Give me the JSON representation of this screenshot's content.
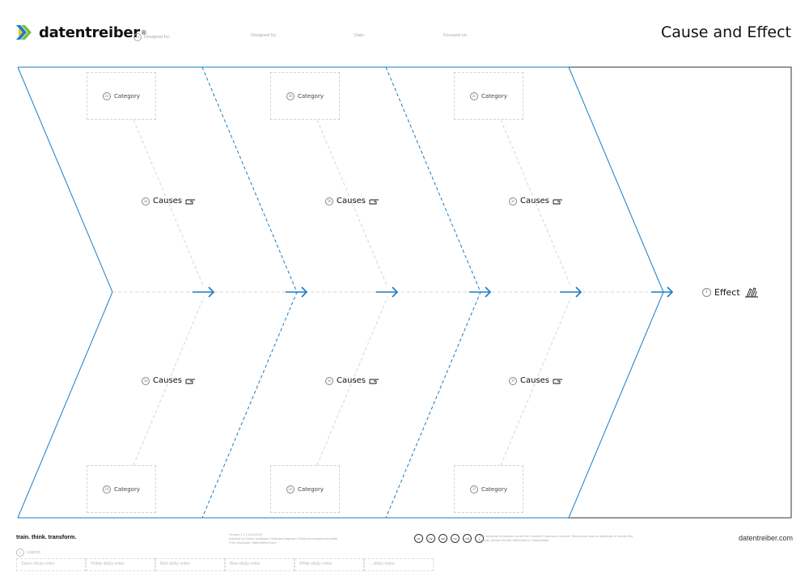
{
  "header": {
    "brand": "datentreiber",
    "brand_mark": "®",
    "title": "Cause and Effect",
    "meta": [
      {
        "num": "1a",
        "label": "Designed for:"
      },
      {
        "num": "",
        "label": "Designed by:"
      },
      {
        "num": "",
        "label": "Date:"
      },
      {
        "num": "",
        "label": "Focused on:"
      }
    ]
  },
  "diagram": {
    "top_categories": [
      {
        "num": "2a",
        "label": "Category"
      },
      {
        "num": "2b",
        "label": "Category"
      },
      {
        "num": "2c",
        "label": "Category"
      }
    ],
    "bottom_categories": [
      {
        "num": "2d",
        "label": "Category"
      },
      {
        "num": "2e",
        "label": "Category"
      },
      {
        "num": "2f",
        "label": "Category"
      }
    ],
    "top_causes": [
      {
        "num": "3a",
        "label": "Causes"
      },
      {
        "num": "3b",
        "label": "Causes"
      },
      {
        "num": "3c",
        "label": "Causes"
      }
    ],
    "bottom_causes": [
      {
        "num": "3d",
        "label": "Causes"
      },
      {
        "num": "3e",
        "label": "Causes"
      },
      {
        "num": "3f",
        "label": "Causes"
      }
    ],
    "effect": {
      "num": "1",
      "label": "Effect"
    },
    "colors": {
      "frame": "#1a7bc4",
      "guide": "#d6d6d6",
      "border": "#333333"
    }
  },
  "footer": {
    "tagline": "train. think. transform.",
    "version_lines": [
      "Version 1.1 | 02.6.2023",
      "Inspired by Kaoru Ishikawa | Ishikawa diagram | Fishbone analysis template",
      "Free download: datentreiber.com"
    ],
    "cc_icons": [
      "cc",
      "by",
      "sa",
      "nc",
      "nd",
      "i"
    ],
    "license": "This template is licensed under the Creative Commons License. Should you wish to distribute or modify this canvas, please include attribution to Datentreiber.",
    "site": "datentreiber.com",
    "legend_title": {
      "num": "0",
      "label": "Legend"
    },
    "legend_items": [
      "Green sticky notes",
      "Yellow sticky notes",
      "Red sticky notes",
      "Blue sticky notes",
      "White sticky notes",
      "... sticky notes"
    ]
  }
}
